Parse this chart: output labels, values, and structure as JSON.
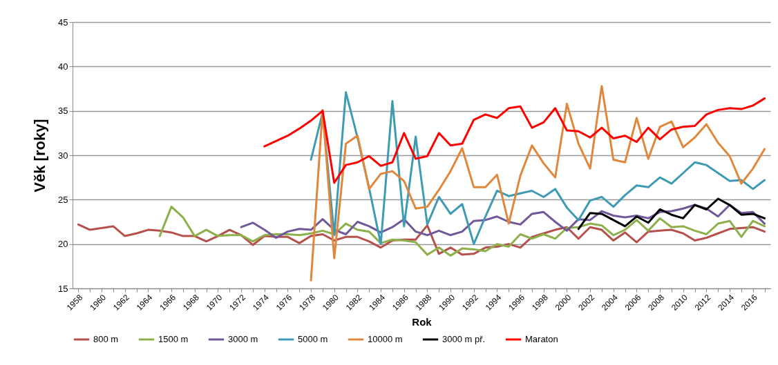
{
  "chart_data": {
    "type": "line",
    "xlabel": "Rok",
    "ylabel": "Věk [roky]",
    "categories": [
      "1958",
      null,
      "1960",
      null,
      "1962",
      null,
      "1964",
      null,
      "1966",
      null,
      "1968",
      null,
      "1970",
      null,
      "1972",
      null,
      "1974",
      null,
      "1976",
      null,
      "1978",
      null,
      "1980",
      null,
      "1982",
      null,
      "1984",
      null,
      "1986",
      null,
      "1988",
      null,
      "1990",
      null,
      "1992",
      null,
      "1994",
      null,
      "1996",
      null,
      "1998",
      null,
      "2000",
      null,
      "2002",
      null,
      "2004",
      null,
      "2006",
      null,
      "2008",
      null,
      "2010",
      null,
      "2012",
      null,
      "2014",
      null,
      "2016",
      null
    ],
    "ylim": [
      15,
      45
    ],
    "yticks": [
      15,
      20,
      25,
      30,
      35,
      40,
      45
    ],
    "grid": "y",
    "legend": "bottom",
    "line_style": "solid",
    "series": [
      {
        "name": "800 m",
        "color": "#b5504b",
        "values": [
          22.2,
          21.6,
          21.8,
          22.0,
          20.9,
          21.2,
          21.6,
          21.5,
          21.3,
          20.9,
          20.9,
          20.3,
          20.9,
          21.6,
          21.0,
          19.9,
          20.9,
          20.8,
          20.8,
          20.1,
          20.9,
          21.1,
          20.4,
          20.8,
          20.8,
          20.3,
          19.6,
          20.4,
          20.5,
          20.5,
          22.1,
          18.9,
          19.6,
          18.8,
          18.9,
          19.6,
          19.7,
          20.0,
          19.6,
          20.8,
          21.2,
          21.6,
          21.9,
          20.6,
          21.9,
          21.6,
          20.4,
          21.3,
          20.2,
          21.4,
          21.5,
          21.6,
          21.2,
          20.4,
          20.7,
          21.2,
          21.7,
          21.8,
          21.9,
          21.4
        ]
      },
      {
        "name": "1500 m",
        "color": "#8db04a",
        "values": [
          null,
          null,
          null,
          null,
          null,
          null,
          null,
          20.9,
          24.2,
          23.0,
          20.9,
          21.6,
          20.9,
          21.0,
          21.0,
          20.3,
          21.0,
          21.1,
          21.1,
          21.0,
          21.2,
          21.5,
          21.1,
          22.3,
          21.6,
          21.4,
          20.1,
          20.5,
          20.4,
          20.2,
          18.8,
          19.6,
          18.7,
          19.5,
          19.4,
          19.2,
          20.0,
          19.7,
          21.1,
          20.6,
          21.1,
          20.6,
          21.8,
          21.9,
          22.3,
          22.1,
          21.0,
          21.6,
          22.7,
          21.5,
          22.9,
          21.9,
          22.0,
          21.5,
          21.1,
          22.3,
          22.6,
          20.8,
          22.6,
          22.0
        ]
      },
      {
        "name": "3000 m",
        "color": "#71589a",
        "values": [
          null,
          null,
          null,
          null,
          null,
          null,
          null,
          null,
          null,
          null,
          null,
          null,
          null,
          null,
          21.9,
          22.4,
          21.6,
          20.7,
          21.4,
          21.7,
          21.6,
          22.8,
          21.6,
          21.1,
          22.5,
          22.0,
          21.3,
          21.9,
          22.8,
          21.4,
          21.0,
          21.5,
          21.0,
          21.4,
          22.6,
          22.7,
          23.1,
          22.5,
          22.2,
          23.4,
          23.6,
          22.5,
          21.5,
          22.8,
          22.7,
          23.7,
          23.2,
          23.0,
          23.2,
          22.9,
          23.6,
          23.7,
          24.0,
          24.4,
          24.0,
          23.1,
          24.4,
          23.5,
          23.6,
          22.3
        ]
      },
      {
        "name": "5000 m",
        "color": "#3f9ab3",
        "values": [
          null,
          null,
          null,
          null,
          null,
          null,
          null,
          null,
          null,
          null,
          null,
          null,
          null,
          null,
          null,
          null,
          null,
          null,
          null,
          null,
          29.5,
          34.8,
          21.0,
          37.1,
          32.0,
          26.3,
          20.0,
          36.1,
          22.0,
          32.1,
          22.2,
          25.3,
          23.4,
          24.5,
          20.0,
          23.1,
          26.0,
          25.4,
          25.7,
          26.0,
          25.3,
          26.2,
          24.1,
          22.7,
          24.9,
          25.3,
          24.2,
          25.5,
          26.6,
          26.4,
          27.5,
          26.8,
          28.0,
          29.2,
          28.9,
          28.0,
          27.1,
          27.2,
          26.2,
          27.2
        ]
      },
      {
        "name": "10000 m",
        "color": "#e0873c",
        "values": [
          null,
          null,
          null,
          null,
          null,
          null,
          null,
          null,
          null,
          null,
          null,
          null,
          null,
          null,
          null,
          null,
          null,
          null,
          null,
          null,
          15.9,
          35.1,
          18.4,
          31.3,
          32.2,
          26.2,
          27.9,
          28.2,
          27.1,
          24.0,
          24.2,
          26.1,
          28.2,
          30.8,
          26.4,
          26.4,
          27.8,
          22.3,
          27.7,
          31.1,
          29.1,
          27.5,
          35.8,
          31.3,
          28.5,
          37.8,
          29.5,
          29.2,
          34.2,
          29.6,
          33.2,
          33.8,
          30.9,
          32.0,
          33.5,
          31.4,
          29.9,
          26.8,
          28.5,
          30.7
        ]
      },
      {
        "name": "3000 m př.",
        "color": "#000000",
        "values": [
          null,
          null,
          null,
          null,
          null,
          null,
          null,
          null,
          null,
          null,
          null,
          null,
          null,
          null,
          null,
          null,
          null,
          null,
          null,
          null,
          null,
          null,
          null,
          null,
          null,
          null,
          null,
          null,
          null,
          null,
          null,
          null,
          null,
          null,
          null,
          null,
          null,
          null,
          null,
          null,
          null,
          null,
          null,
          21.7,
          23.5,
          23.4,
          22.7,
          22.0,
          23.1,
          22.4,
          23.9,
          23.3,
          22.9,
          24.4,
          23.9,
          25.1,
          24.4,
          23.3,
          23.4,
          22.9
        ]
      },
      {
        "name": "Maraton",
        "color": "#ff0000",
        "values": [
          null,
          null,
          null,
          null,
          null,
          null,
          null,
          null,
          null,
          null,
          null,
          null,
          null,
          null,
          null,
          null,
          31.0,
          31.6,
          32.2,
          33.0,
          33.9,
          35.0,
          26.9,
          28.9,
          29.2,
          29.9,
          28.8,
          29.2,
          32.5,
          29.6,
          29.9,
          32.5,
          31.1,
          31.3,
          34.0,
          34.6,
          34.2,
          35.3,
          35.5,
          33.1,
          33.7,
          35.3,
          32.8,
          32.7,
          32.0,
          33.1,
          31.9,
          32.2,
          31.5,
          33.1,
          31.8,
          32.9,
          33.2,
          33.3,
          34.6,
          35.1,
          35.3,
          35.2,
          35.6,
          36.4
        ]
      }
    ]
  }
}
